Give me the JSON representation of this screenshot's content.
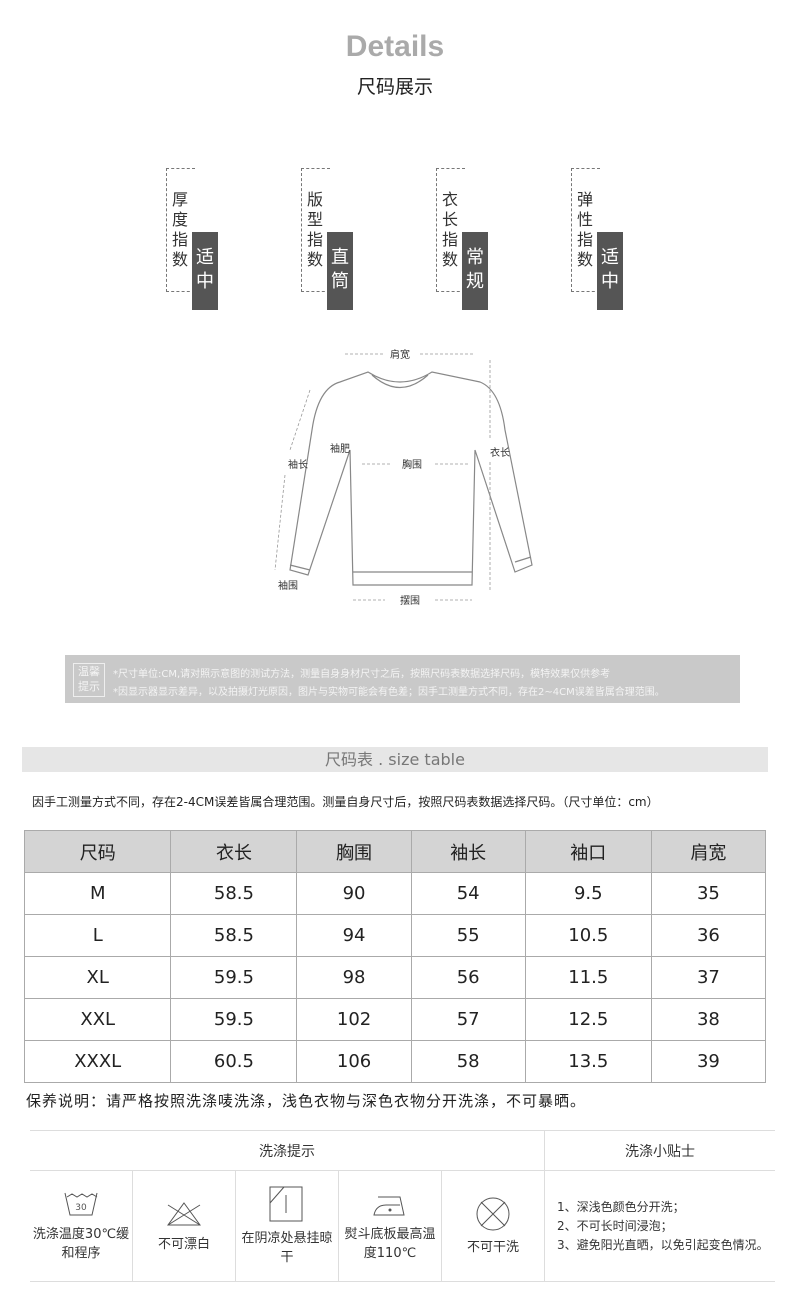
{
  "header": {
    "title": "Details",
    "subtitle": "尺码展示"
  },
  "indices": [
    {
      "label": "厚度指数",
      "value": "适中"
    },
    {
      "label": "版型指数",
      "value": "直筒"
    },
    {
      "label": "衣长指数",
      "value": "常规"
    },
    {
      "label": "弹性指数",
      "value": "适中"
    }
  ],
  "diagram": {
    "shoulder": "肩宽",
    "sleeve_length": "袖长",
    "sleeve_width": "袖肥",
    "chest": "胸围",
    "length": "衣长",
    "cuff": "袖围",
    "hem": "摆围"
  },
  "notice": {
    "badge": "温馨提示",
    "line1": "*尺寸单位:CM,请对照示意图的测试方法，测量自身身材尺寸之后，按照尺码表数据选择尺码，模特效果仅供参考",
    "line2": "*因显示器显示差异，以及拍摄灯光原因，图片与实物可能会有色差；因手工测量方式不同，存在2~4CM误差皆属合理范围。"
  },
  "size_table": {
    "title": "尺码表 . size table",
    "note": "因手工测量方式不同，存在2-4CM误差皆属合理范围。测量自身尺寸后，按照尺码表数据选择尺码。（尺寸单位：cm）",
    "headers": [
      "尺码",
      "衣长",
      "胸围",
      "袖长",
      "袖口",
      "肩宽"
    ],
    "rows": [
      [
        "M",
        "58.5",
        "90",
        "54",
        "9.5",
        "35"
      ],
      [
        "L",
        "58.5",
        "94",
        "55",
        "10.5",
        "36"
      ],
      [
        "XL",
        "59.5",
        "98",
        "56",
        "11.5",
        "37"
      ],
      [
        "XXL",
        "59.5",
        "102",
        "57",
        "12.5",
        "38"
      ],
      [
        "XXXL",
        "60.5",
        "106",
        "58",
        "13.5",
        "39"
      ]
    ]
  },
  "care": {
    "instruction": "保养说明：请严格按照洗涤唛洗涤，浅色衣物与深色衣物分开洗涤，不可暴晒。",
    "wash_header": "洗涤提示",
    "tips_header": "洗涤小贴士",
    "items": [
      {
        "icon": "wash-30-icon",
        "text": "洗涤温度30℃缓和程序",
        "temp": "30"
      },
      {
        "icon": "no-bleach-icon",
        "text": "不可漂白"
      },
      {
        "icon": "hang-dry-shade-icon",
        "text": "在阴凉处悬挂晾干"
      },
      {
        "icon": "iron-low-icon",
        "text": "熨斗底板最高温度110℃"
      },
      {
        "icon": "no-dry-clean-icon",
        "text": "不可干洗"
      }
    ],
    "tips": [
      "1、深浅色颜色分开洗；",
      "2、不可长时间浸泡；",
      "3、避免阳光直晒，以免引起变色情况。"
    ]
  }
}
